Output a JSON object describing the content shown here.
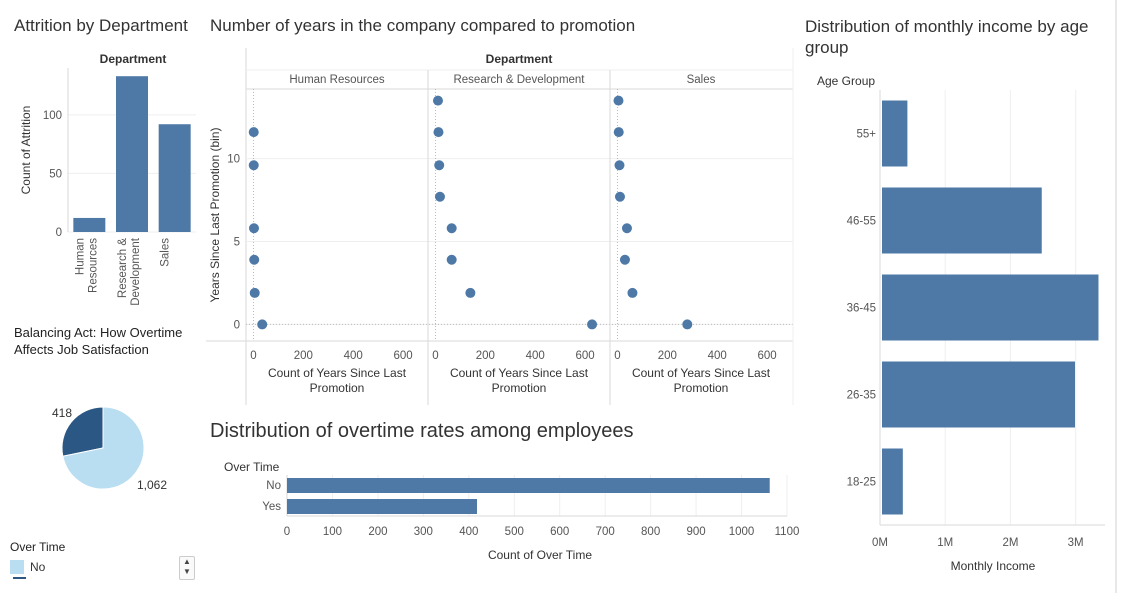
{
  "colors": {
    "bar": "#4e79a7",
    "dot": "#4e79a7",
    "pie_yes": "#2a5783",
    "pie_no": "#b9ddf1",
    "grid": "#efefef",
    "axis": "#d9d9d9",
    "ref": "#bbbbbb"
  },
  "titles": {
    "attrition": "Attrition by Department",
    "promotion": "Number of years in the company compared to promotion",
    "income": "Distribution of monthly income by age group",
    "overtime": "Distribution of overtime rates among employees",
    "balancing": "Balancing Act: How Overtime Affects Job Satisfaction"
  },
  "legend": {
    "title": "Over Time",
    "items": [
      {
        "label": "No"
      }
    ],
    "scroll_icon": "up-down-arrows-icon"
  },
  "chart_data": [
    {
      "id": "attrition",
      "type": "bar",
      "header": "Department",
      "ylabel": "Count of Attrition",
      "ylim": [
        0,
        140
      ],
      "yticks": [
        "0",
        "50",
        "100"
      ],
      "categories": [
        "Human Resources",
        "Research & Development",
        "Sales"
      ],
      "category_lines": [
        [
          "Human",
          "Resources"
        ],
        [
          "Research &",
          "Development"
        ],
        [
          "Sales"
        ]
      ],
      "values": [
        12,
        133,
        92
      ]
    },
    {
      "id": "promotion",
      "type": "scatter",
      "header": "Department",
      "facets": [
        "Human Resources",
        "Research & Development",
        "Sales"
      ],
      "xlabel": "Count of Years Since Last Promotion",
      "ylabel": "Years Since Last Promotion (bin)",
      "xlim": [
        -30,
        700
      ],
      "xticks": [
        "0",
        "200",
        "400",
        "600"
      ],
      "ylim": [
        -1,
        14.2
      ],
      "yticks": [
        "0",
        "5",
        "10"
      ],
      "series": [
        {
          "name": "Human Resources",
          "points": [
            {
              "x": 35,
              "y": 0
            },
            {
              "x": 5,
              "y": 1.9
            },
            {
              "x": 3,
              "y": 3.9
            },
            {
              "x": 2,
              "y": 5.8
            },
            {
              "x": 1,
              "y": 9.6
            },
            {
              "x": 1,
              "y": 11.6
            }
          ]
        },
        {
          "name": "Research & Development",
          "points": [
            {
              "x": 628,
              "y": 0
            },
            {
              "x": 140,
              "y": 1.9
            },
            {
              "x": 65,
              "y": 3.9
            },
            {
              "x": 65,
              "y": 5.8
            },
            {
              "x": 18,
              "y": 7.7
            },
            {
              "x": 15,
              "y": 9.6
            },
            {
              "x": 12,
              "y": 11.6
            },
            {
              "x": 10,
              "y": 13.5
            }
          ]
        },
        {
          "name": "Sales",
          "points": [
            {
              "x": 280,
              "y": 0
            },
            {
              "x": 60,
              "y": 1.9
            },
            {
              "x": 30,
              "y": 3.9
            },
            {
              "x": 38,
              "y": 5.8
            },
            {
              "x": 10,
              "y": 7.7
            },
            {
              "x": 8,
              "y": 9.6
            },
            {
              "x": 5,
              "y": 11.6
            },
            {
              "x": 4,
              "y": 13.5
            }
          ]
        }
      ]
    },
    {
      "id": "income",
      "type": "bar",
      "orientation": "horizontal",
      "header": "Age Group",
      "xlabel": "Monthly Income",
      "xlim": [
        0,
        3450000
      ],
      "xticks": [
        {
          "value": 0,
          "label": "0M"
        },
        {
          "value": 1000000,
          "label": "1M"
        },
        {
          "value": 2000000,
          "label": "2M"
        },
        {
          "value": 3000000,
          "label": "3M"
        }
      ],
      "categories": [
        "55+",
        "46-55",
        "36-45",
        "26-35",
        "18-25"
      ],
      "values": [
        420000,
        2480000,
        3350000,
        2990000,
        350000
      ]
    },
    {
      "id": "overtime",
      "type": "bar",
      "orientation": "horizontal",
      "header": "Over Time",
      "xlabel": "Count of Over Time",
      "xlim": [
        0,
        1100
      ],
      "xticks": [
        "0",
        "100",
        "200",
        "300",
        "400",
        "500",
        "600",
        "700",
        "800",
        "900",
        "1000",
        "1100"
      ],
      "categories": [
        "No",
        "Yes"
      ],
      "values": [
        1062,
        418
      ]
    },
    {
      "id": "balancing",
      "type": "pie",
      "slices": [
        {
          "label": "Yes",
          "value": 418,
          "text": "418"
        },
        {
          "label": "No",
          "value": 1062,
          "text": "1,062"
        }
      ]
    }
  ]
}
